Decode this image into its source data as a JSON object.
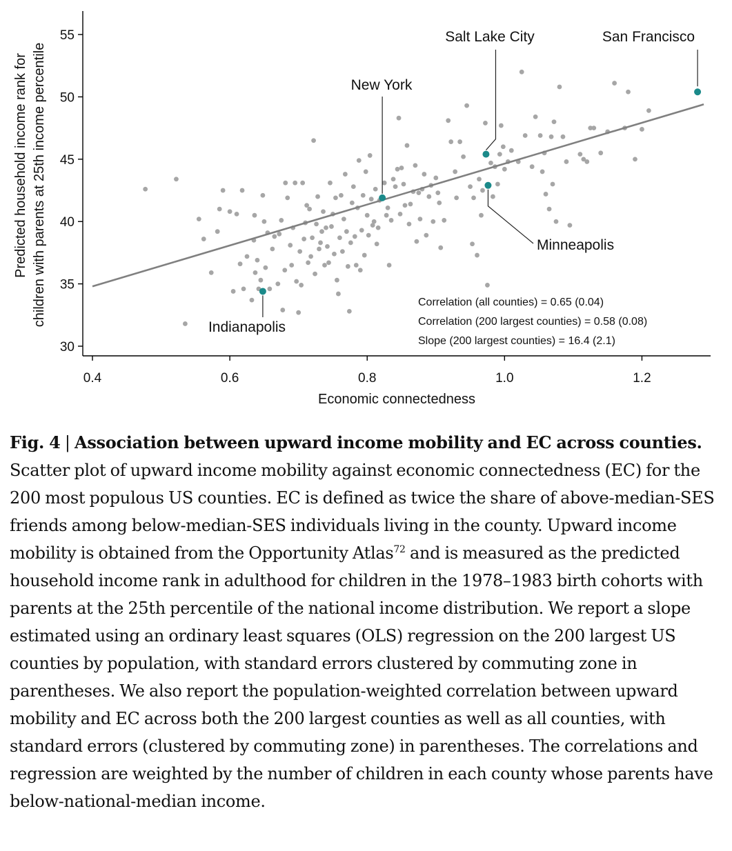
{
  "chart_data": {
    "type": "scatter",
    "xlabel": "Economic connectedness",
    "ylabel_lines": [
      "Predicted household income rank for",
      "children with parents at 25th income percentile"
    ],
    "xlim": [
      0.4,
      1.3
    ],
    "ylim": [
      30,
      56
    ],
    "x_ticks": [
      0.4,
      0.6,
      0.8,
      1.0,
      1.2
    ],
    "x_tick_labels": [
      "0.4",
      "0.6",
      "0.8",
      "1.0",
      "1.2"
    ],
    "y_ticks": [
      30,
      35,
      40,
      45,
      50,
      55
    ],
    "y_tick_labels": [
      "30",
      "35",
      "40",
      "45",
      "50",
      "55"
    ],
    "grid": false,
    "colors": {
      "points": "#a6a6a6",
      "highlight": "#1b8a8a",
      "fit": "#808080"
    },
    "fit_line": {
      "x": [
        0.4,
        1.29
      ],
      "y": [
        34.8,
        49.4
      ]
    },
    "points": [
      [
        0.477,
        42.6
      ],
      [
        0.522,
        43.4
      ],
      [
        0.535,
        31.8
      ],
      [
        0.555,
        40.2
      ],
      [
        0.562,
        38.6
      ],
      [
        0.573,
        35.9
      ],
      [
        0.582,
        39.2
      ],
      [
        0.585,
        41.0
      ],
      [
        0.59,
        42.5
      ],
      [
        0.6,
        40.8
      ],
      [
        0.605,
        34.4
      ],
      [
        0.61,
        40.6
      ],
      [
        0.615,
        36.6
      ],
      [
        0.618,
        42.5
      ],
      [
        0.62,
        34.6
      ],
      [
        0.625,
        37.2
      ],
      [
        0.632,
        33.7
      ],
      [
        0.635,
        38.5
      ],
      [
        0.636,
        40.5
      ],
      [
        0.637,
        35.9
      ],
      [
        0.64,
        36.9
      ],
      [
        0.642,
        34.6
      ],
      [
        0.645,
        35.3
      ],
      [
        0.648,
        42.1
      ],
      [
        0.65,
        40.0
      ],
      [
        0.652,
        36.3
      ],
      [
        0.655,
        39.1
      ],
      [
        0.658,
        34.6
      ],
      [
        0.662,
        37.8
      ],
      [
        0.665,
        38.8
      ],
      [
        0.67,
        35.0
      ],
      [
        0.672,
        39.0
      ],
      [
        0.675,
        40.1
      ],
      [
        0.677,
        32.9
      ],
      [
        0.68,
        36.1
      ],
      [
        0.681,
        43.1
      ],
      [
        0.684,
        41.9
      ],
      [
        0.688,
        38.1
      ],
      [
        0.69,
        36.5
      ],
      [
        0.692,
        39.5
      ],
      [
        0.695,
        43.1
      ],
      [
        0.697,
        35.2
      ],
      [
        0.7,
        32.7
      ],
      [
        0.702,
        37.6
      ],
      [
        0.704,
        34.9
      ],
      [
        0.706,
        43.1
      ],
      [
        0.708,
        38.6
      ],
      [
        0.71,
        39.9
      ],
      [
        0.712,
        41.3
      ],
      [
        0.714,
        36.7
      ],
      [
        0.716,
        41.0
      ],
      [
        0.718,
        37.2
      ],
      [
        0.72,
        38.7
      ],
      [
        0.722,
        46.5
      ],
      [
        0.724,
        35.8
      ],
      [
        0.726,
        39.8
      ],
      [
        0.728,
        42.0
      ],
      [
        0.73,
        37.8
      ],
      [
        0.732,
        38.3
      ],
      [
        0.734,
        39.2
      ],
      [
        0.736,
        40.8
      ],
      [
        0.738,
        36.5
      ],
      [
        0.74,
        39.5
      ],
      [
        0.742,
        38.0
      ],
      [
        0.744,
        36.7
      ],
      [
        0.746,
        43.1
      ],
      [
        0.748,
        39.6
      ],
      [
        0.75,
        40.6
      ],
      [
        0.752,
        37.4
      ],
      [
        0.754,
        41.9
      ],
      [
        0.756,
        35.3
      ],
      [
        0.758,
        34.2
      ],
      [
        0.76,
        38.7
      ],
      [
        0.762,
        42.1
      ],
      [
        0.764,
        37.6
      ],
      [
        0.766,
        40.2
      ],
      [
        0.768,
        43.8
      ],
      [
        0.77,
        39.2
      ],
      [
        0.772,
        36.4
      ],
      [
        0.774,
        32.8
      ],
      [
        0.776,
        38.3
      ],
      [
        0.778,
        41.5
      ],
      [
        0.78,
        42.8
      ],
      [
        0.782,
        38.8
      ],
      [
        0.784,
        36.5
      ],
      [
        0.786,
        41.1
      ],
      [
        0.788,
        44.9
      ],
      [
        0.79,
        36.1
      ],
      [
        0.792,
        39.3
      ],
      [
        0.794,
        42.1
      ],
      [
        0.796,
        37.3
      ],
      [
        0.798,
        44.0
      ],
      [
        0.8,
        40.5
      ],
      [
        0.802,
        38.9
      ],
      [
        0.804,
        45.3
      ],
      [
        0.806,
        41.8
      ],
      [
        0.808,
        39.7
      ],
      [
        0.81,
        40.0
      ],
      [
        0.812,
        42.6
      ],
      [
        0.814,
        38.2
      ],
      [
        0.816,
        39.5
      ],
      [
        0.818,
        41.7
      ],
      [
        0.825,
        43.1
      ],
      [
        0.828,
        40.5
      ],
      [
        0.83,
        41.1
      ],
      [
        0.832,
        36.5
      ],
      [
        0.835,
        40.1
      ],
      [
        0.838,
        43.4
      ],
      [
        0.841,
        42.8
      ],
      [
        0.844,
        44.2
      ],
      [
        0.846,
        48.3
      ],
      [
        0.848,
        40.6
      ],
      [
        0.85,
        44.3
      ],
      [
        0.853,
        43.0
      ],
      [
        0.855,
        41.3
      ],
      [
        0.858,
        46.1
      ],
      [
        0.861,
        39.8
      ],
      [
        0.863,
        41.4
      ],
      [
        0.867,
        42.4
      ],
      [
        0.87,
        44.5
      ],
      [
        0.872,
        38.4
      ],
      [
        0.875,
        42.3
      ],
      [
        0.877,
        40.2
      ],
      [
        0.88,
        42.6
      ],
      [
        0.883,
        43.8
      ],
      [
        0.886,
        38.9
      ],
      [
        0.89,
        42.0
      ],
      [
        0.893,
        42.9
      ],
      [
        0.896,
        40.0
      ],
      [
        0.9,
        43.5
      ],
      [
        0.903,
        42.3
      ],
      [
        0.905,
        41.5
      ],
      [
        0.907,
        37.9
      ],
      [
        0.912,
        40.1
      ],
      [
        0.918,
        48.1
      ],
      [
        0.922,
        46.4
      ],
      [
        0.928,
        44.0
      ],
      [
        0.93,
        41.9
      ],
      [
        0.935,
        46.4
      ],
      [
        0.94,
        45.2
      ],
      [
        0.945,
        49.3
      ],
      [
        0.95,
        42.8
      ],
      [
        0.953,
        38.2
      ],
      [
        0.955,
        41.9
      ],
      [
        0.96,
        37.3
      ],
      [
        0.963,
        43.4
      ],
      [
        0.966,
        40.5
      ],
      [
        0.968,
        42.5
      ],
      [
        0.972,
        47.9
      ],
      [
        0.975,
        34.9
      ],
      [
        0.98,
        44.7
      ],
      [
        0.983,
        42.0
      ],
      [
        0.986,
        44.4
      ],
      [
        0.99,
        43.0
      ],
      [
        0.993,
        45.4
      ],
      [
        0.995,
        47.7
      ],
      [
        0.998,
        46.0
      ],
      [
        1.0,
        44.2
      ],
      [
        1.005,
        44.8
      ],
      [
        1.01,
        45.7
      ],
      [
        1.02,
        44.8
      ],
      [
        1.025,
        52.0
      ],
      [
        1.03,
        46.9
      ],
      [
        1.04,
        44.4
      ],
      [
        1.045,
        48.4
      ],
      [
        1.052,
        46.9
      ],
      [
        1.055,
        44.0
      ],
      [
        1.058,
        45.5
      ],
      [
        1.06,
        42.2
      ],
      [
        1.065,
        41.0
      ],
      [
        1.068,
        46.8
      ],
      [
        1.07,
        43.0
      ],
      [
        1.072,
        48.0
      ],
      [
        1.075,
        40.0
      ],
      [
        1.08,
        50.8
      ],
      [
        1.085,
        46.8
      ],
      [
        1.09,
        44.8
      ],
      [
        1.095,
        39.7
      ],
      [
        1.11,
        45.4
      ],
      [
        1.115,
        45.0
      ],
      [
        1.12,
        44.8
      ],
      [
        1.125,
        47.5
      ],
      [
        1.13,
        47.5
      ],
      [
        1.14,
        45.5
      ],
      [
        1.15,
        47.2
      ],
      [
        1.16,
        51.1
      ],
      [
        1.175,
        47.5
      ],
      [
        1.18,
        50.4
      ],
      [
        1.19,
        45.0
      ],
      [
        1.2,
        47.4
      ],
      [
        1.21,
        48.9
      ]
    ],
    "highlights": [
      {
        "name": "San Francisco",
        "x": 1.281,
        "y": 50.4
      },
      {
        "name": "Salt Lake City",
        "x": 0.973,
        "y": 45.4
      },
      {
        "name": "New York",
        "x": 0.822,
        "y": 41.9
      },
      {
        "name": "Minneapolis",
        "x": 0.976,
        "y": 42.9
      },
      {
        "name": "Indianapolis",
        "x": 0.648,
        "y": 34.4
      }
    ],
    "annotations": [
      "Correlation (all counties) = 0.65 (0.04)",
      "Correlation (200 largest counties) = 0.58 (0.08)",
      "Slope (200 largest counties) = 16.4 (2.1)"
    ]
  },
  "caption": {
    "fig_label": "Fig. 4",
    "separator": " | ",
    "fig_title": "Association between upward income mobility and EC across counties.",
    "body_part1": " Scatter plot of upward income mobility against economic connectedness (EC) for the 200 most populous US counties. EC is defined as twice the share of above-median-SES friends among below-median-SES individuals living in the county. Upward income mobility is obtained from the Opportunity Atlas",
    "ref": "72",
    "body_part2": " and is measured as the predicted household income rank in adulthood for children in the 1978–1983 birth cohorts with parents at the 25th percentile of the national income distribution. We report a slope estimated using an ordinary least squares (OLS) regression on the 200 largest US counties by population, with standard errors clustered by commuting zone in parentheses. We also report the population-weighted correlation between upward mobility and EC across both the 200 largest counties as well as all counties, with standard errors (clustered by commuting zone) in parentheses. The correlations and regression are weighted by the number of children in each county whose parents have below-national-median income."
  }
}
